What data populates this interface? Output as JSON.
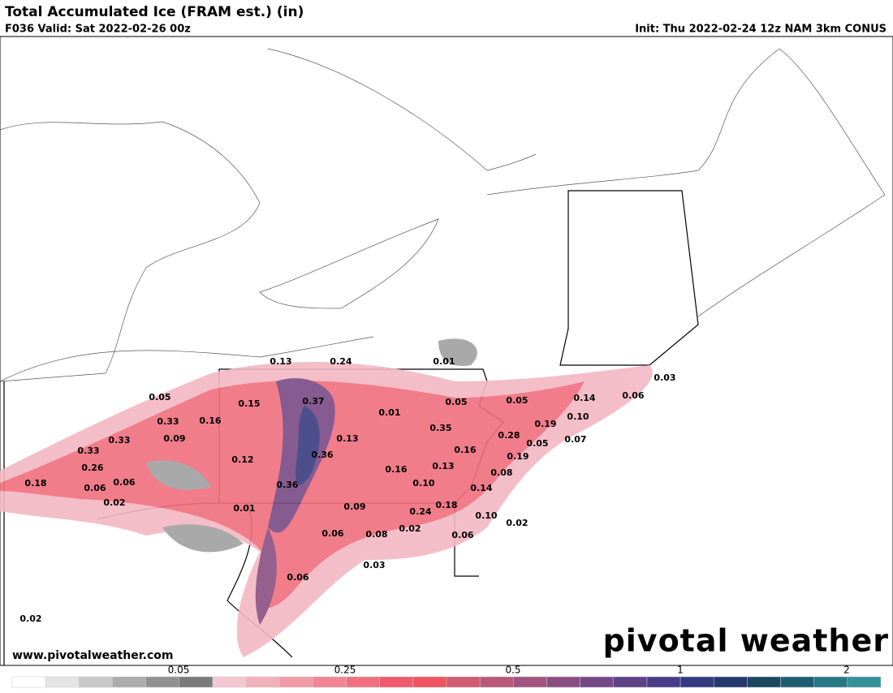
{
  "header": {
    "title": "Total Accumulated Ice (FRAM est.) (in)",
    "valid": "F036 Valid: Sat 2022-02-26 00z",
    "init": "Init: Thu 2022-02-24 12z NAM 3km CONUS"
  },
  "map": {
    "labels": [
      "0.13",
      "0.24",
      "0.01",
      "0.03",
      "0.05",
      "0.37",
      "0.05",
      "0.05",
      "0.14",
      "0.06",
      "0.15",
      "0.16",
      "0.33",
      "0.01",
      "0.35",
      "0.19",
      "0.10",
      "0.28",
      "0.05",
      "0.07",
      "0.09",
      "0.33",
      "0.13",
      "0.16",
      "0.33",
      "0.36",
      "0.19",
      "0.12",
      "0.13",
      "0.26",
      "0.16",
      "0.08",
      "0.18",
      "0.06",
      "0.06",
      "0.36",
      "0.10",
      "0.14",
      "0.02",
      "0.01",
      "0.09",
      "0.18",
      "0.24",
      "0.10",
      "0.02",
      "0.06",
      "0.08",
      "0.02",
      "0.06",
      "0.03",
      "0.06",
      "0.02"
    ],
    "website": "www.pivotalweather.com",
    "brand": "pivotal weather"
  },
  "colorbar": {
    "colors": [
      "#ffffff",
      "#e4e4e4",
      "#c8c8c8",
      "#acacac",
      "#909090",
      "#7a7a7a",
      "#f3c6d0",
      "#f0b0bc",
      "#f09aa8",
      "#f08594",
      "#f06f80",
      "#f05a6c",
      "#ee5560",
      "#d05a72",
      "#b85878",
      "#a0547e",
      "#8a4e82",
      "#744884",
      "#5e4286",
      "#483c86",
      "#343a80",
      "#243a6e",
      "#1c4662",
      "#1f5e72",
      "#277884",
      "#33909a"
    ],
    "ticks": [
      "0.05",
      "0.25",
      "0.5",
      "1",
      "2"
    ]
  }
}
